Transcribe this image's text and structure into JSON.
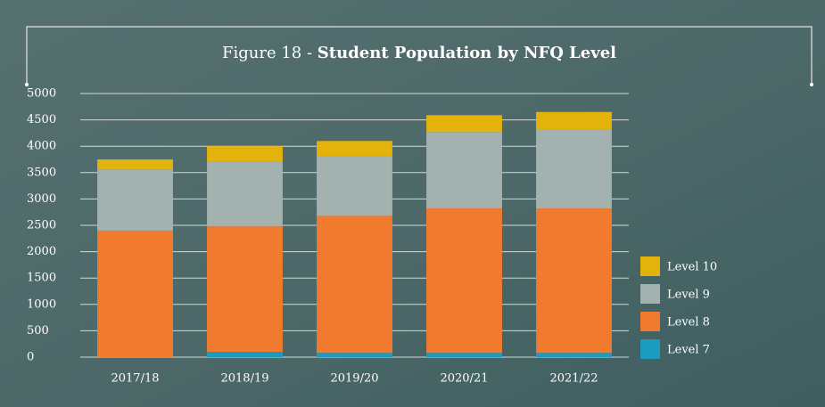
{
  "chart_data": {
    "type": "stacked_bar",
    "title": [
      "Figure 18 -",
      "Student Population by NFQ Level"
    ],
    "categories": [
      "2017/18",
      "2018/19",
      "2019/20",
      "2020/21",
      "2021/22"
    ],
    "series": [
      {
        "name": "Level 7",
        "color": "#1a9bbf",
        "values": [
          0,
          100,
          80,
          80,
          80
        ]
      },
      {
        "name": "Level 8",
        "color": "#f07b2f",
        "values": [
          2400,
          2380,
          2600,
          2740,
          2740
        ]
      },
      {
        "name": "Level 9",
        "color": "#a3b1af",
        "values": [
          1160,
          1230,
          1130,
          1450,
          1490
        ]
      },
      {
        "name": "Level 10",
        "color": "#e3b30b",
        "values": [
          190,
          290,
          290,
          320,
          340
        ]
      }
    ],
    "ylim": [
      0,
      5000
    ],
    "yticks": [
      0,
      500,
      1000,
      1500,
      2000,
      2500,
      3000,
      3500,
      4000,
      4500,
      5000
    ],
    "grid": true,
    "legend": "right"
  }
}
